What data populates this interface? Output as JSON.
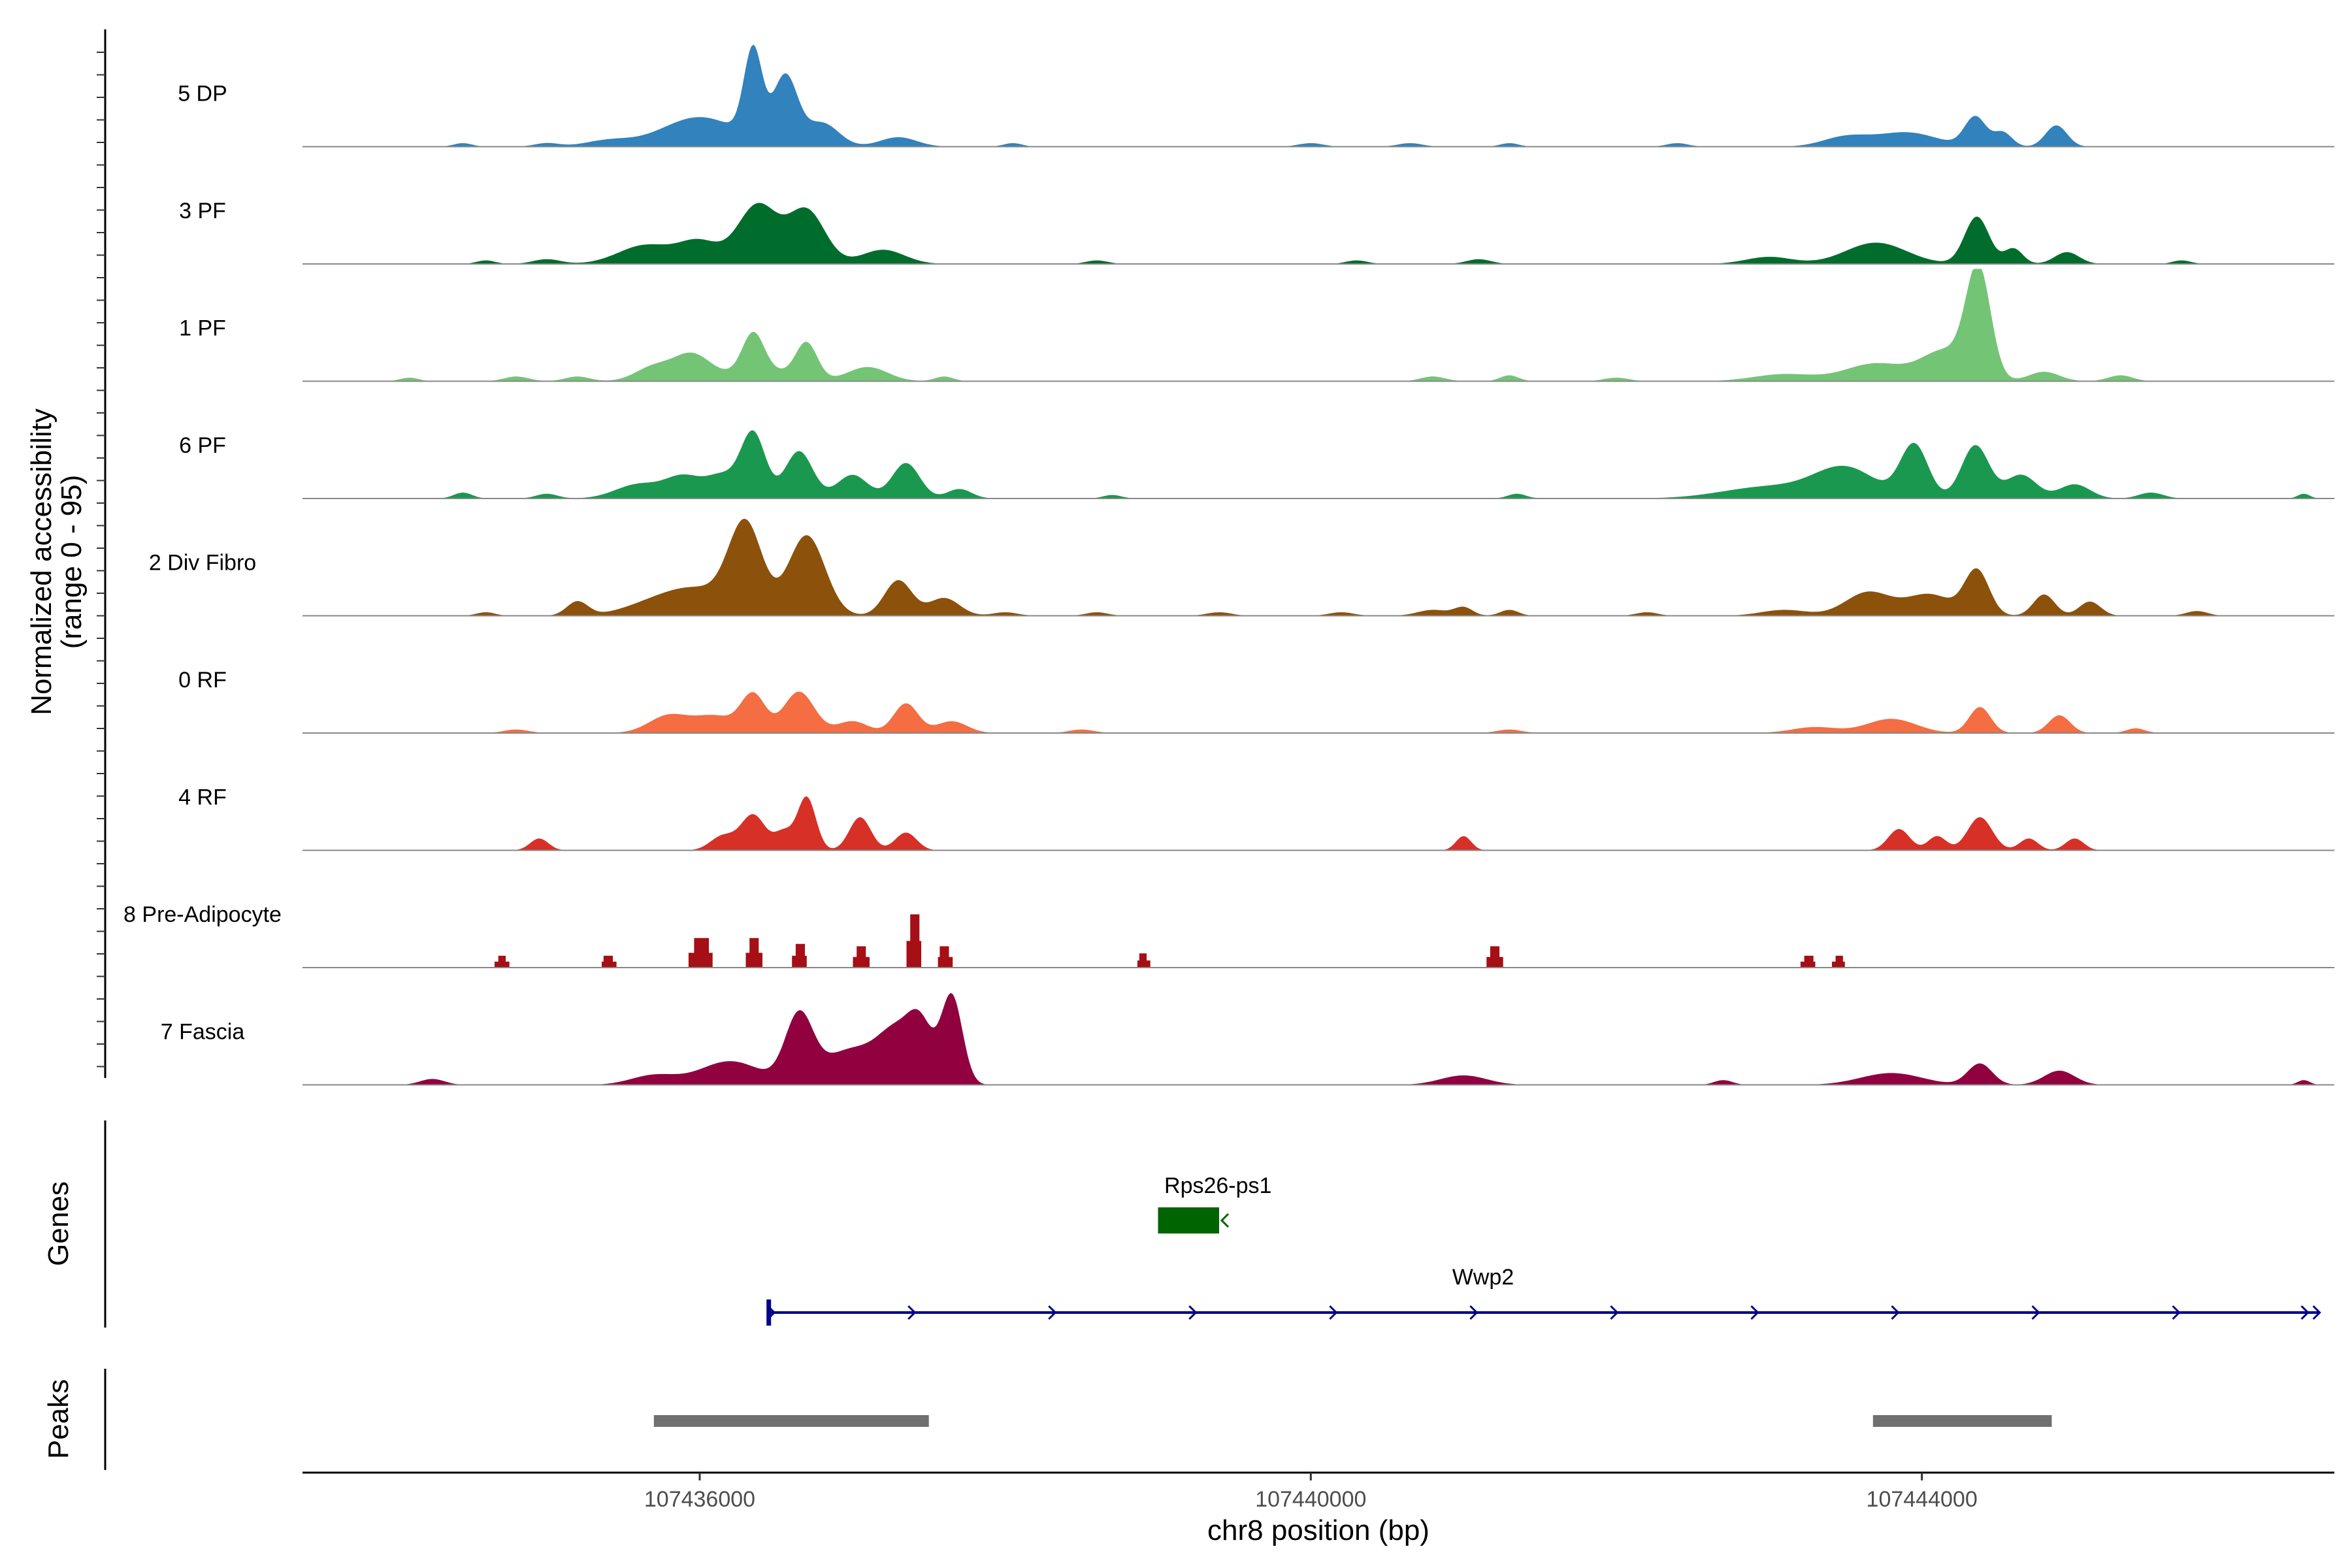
{
  "chart_data": {
    "type": "area",
    "title": "",
    "ylabel_line1": "Normalized accessibility",
    "ylabel_line2": "(range 0 - 95)",
    "y_range": [
      0,
      95
    ],
    "xlabel": "chr8 position (bp)",
    "x_range": [
      107433400,
      107446700
    ],
    "x_ticks": [
      107436000,
      107440000,
      107444000
    ],
    "x_tick_labels": [
      "107436000",
      "107440000",
      "107444000"
    ],
    "tracks": [
      {
        "name": "5 DP",
        "color": "#3182bd",
        "style": "smooth",
        "peaks": [
          [
            107434450,
            3,
            60
          ],
          [
            107435000,
            3,
            80
          ],
          [
            107435400,
            5,
            150
          ],
          [
            107436000,
            25,
            250
          ],
          [
            107436350,
            75,
            60
          ],
          [
            107436560,
            58,
            80
          ],
          [
            107436800,
            20,
            110
          ],
          [
            107437300,
            8,
            120
          ],
          [
            107438050,
            3,
            60
          ],
          [
            107440000,
            3,
            80
          ],
          [
            107440650,
            3,
            80
          ],
          [
            107441300,
            3,
            60
          ],
          [
            107442400,
            3,
            70
          ],
          [
            107443500,
            8,
            150
          ],
          [
            107443900,
            12,
            200
          ],
          [
            107444350,
            25,
            70
          ],
          [
            107444530,
            12,
            60
          ],
          [
            107444880,
            18,
            70
          ]
        ]
      },
      {
        "name": "3 PF",
        "color": "#006d2c",
        "style": "smooth",
        "peaks": [
          [
            107434600,
            3,
            60
          ],
          [
            107435000,
            4,
            90
          ],
          [
            107435650,
            16,
            180
          ],
          [
            107436000,
            18,
            130
          ],
          [
            107436380,
            50,
            130
          ],
          [
            107436700,
            45,
            120
          ],
          [
            107437200,
            12,
            140
          ],
          [
            107438600,
            3,
            70
          ],
          [
            107440300,
            3,
            70
          ],
          [
            107441100,
            4,
            80
          ],
          [
            107443000,
            6,
            150
          ],
          [
            107443700,
            18,
            200
          ],
          [
            107444360,
            40,
            80
          ],
          [
            107444600,
            13,
            60
          ],
          [
            107444950,
            10,
            80
          ],
          [
            107445700,
            3,
            60
          ]
        ]
      },
      {
        "name": "1 PF",
        "color": "#74c476",
        "style": "smooth",
        "peaks": [
          [
            107434100,
            3,
            60
          ],
          [
            107434800,
            4,
            80
          ],
          [
            107435200,
            4,
            80
          ],
          [
            107435700,
            12,
            120
          ],
          [
            107435950,
            22,
            120
          ],
          [
            107436350,
            32,
            70
          ],
          [
            107436700,
            30,
            70
          ],
          [
            107436400,
            10,
            200
          ],
          [
            107437100,
            12,
            130
          ],
          [
            107437600,
            4,
            60
          ],
          [
            107440800,
            4,
            80
          ],
          [
            107441300,
            5,
            60
          ],
          [
            107442000,
            3,
            80
          ],
          [
            107443100,
            6,
            200
          ],
          [
            107443700,
            15,
            200
          ],
          [
            107444370,
            92,
            80
          ],
          [
            107444150,
            25,
            150
          ],
          [
            107444800,
            8,
            100
          ],
          [
            107445300,
            5,
            80
          ]
        ]
      },
      {
        "name": "6 PF",
        "color": "#1a9850",
        "style": "smooth",
        "peaks": [
          [
            107434450,
            5,
            60
          ],
          [
            107435000,
            4,
            70
          ],
          [
            107435600,
            12,
            150
          ],
          [
            107435900,
            18,
            120
          ],
          [
            107436350,
            55,
            80
          ],
          [
            107436150,
            18,
            100
          ],
          [
            107436650,
            40,
            90
          ],
          [
            107437000,
            20,
            100
          ],
          [
            107437350,
            30,
            90
          ],
          [
            107437700,
            8,
            80
          ],
          [
            107438700,
            3,
            60
          ],
          [
            107441350,
            4,
            60
          ],
          [
            107443000,
            10,
            300
          ],
          [
            107443500,
            25,
            200
          ],
          [
            107443950,
            45,
            90
          ],
          [
            107444350,
            45,
            90
          ],
          [
            107444650,
            20,
            100
          ],
          [
            107445000,
            12,
            100
          ],
          [
            107445500,
            5,
            80
          ],
          [
            107446500,
            4,
            40
          ]
        ]
      },
      {
        "name": "2 Div Fibro",
        "color": "#8c510a",
        "style": "smooth",
        "peaks": [
          [
            107434600,
            3,
            60
          ],
          [
            107435200,
            12,
            70
          ],
          [
            107435700,
            10,
            200
          ],
          [
            107436000,
            20,
            200
          ],
          [
            107436300,
            75,
            110
          ],
          [
            107436700,
            68,
            120
          ],
          [
            107437300,
            30,
            90
          ],
          [
            107437600,
            15,
            100
          ],
          [
            107438000,
            3,
            80
          ],
          [
            107438600,
            3,
            70
          ],
          [
            107439400,
            3,
            80
          ],
          [
            107440200,
            3,
            80
          ],
          [
            107440800,
            5,
            100
          ],
          [
            107441000,
            7,
            60
          ],
          [
            107441300,
            5,
            60
          ],
          [
            107442200,
            3,
            70
          ],
          [
            107443100,
            5,
            150
          ],
          [
            107443650,
            20,
            150
          ],
          [
            107444050,
            18,
            150
          ],
          [
            107444360,
            38,
            80
          ],
          [
            107444800,
            18,
            70
          ],
          [
            107445100,
            12,
            70
          ],
          [
            107445800,
            4,
            70
          ]
        ]
      },
      {
        "name": "0 RF",
        "color": "#f46d43",
        "style": "smooth",
        "peaks": [
          [
            107434800,
            3,
            80
          ],
          [
            107435800,
            15,
            130
          ],
          [
            107436100,
            14,
            130
          ],
          [
            107436350,
            32,
            80
          ],
          [
            107436650,
            35,
            100
          ],
          [
            107437000,
            10,
            100
          ],
          [
            107437350,
            25,
            80
          ],
          [
            107437650,
            10,
            100
          ],
          [
            107438500,
            3,
            80
          ],
          [
            107441300,
            3,
            80
          ],
          [
            107443300,
            5,
            150
          ],
          [
            107443800,
            12,
            160
          ],
          [
            107444380,
            22,
            70
          ],
          [
            107444900,
            15,
            70
          ],
          [
            107445400,
            4,
            60
          ]
        ]
      },
      {
        "name": "4 RF",
        "color": "#d73027",
        "style": "smooth",
        "peaks": [
          [
            107434950,
            10,
            60
          ],
          [
            107436350,
            30,
            80
          ],
          [
            107436150,
            12,
            80
          ],
          [
            107436700,
            45,
            60
          ],
          [
            107436550,
            15,
            60
          ],
          [
            107437050,
            28,
            70
          ],
          [
            107437350,
            15,
            70
          ],
          [
            107441000,
            12,
            50
          ],
          [
            107443850,
            18,
            70
          ],
          [
            107444100,
            12,
            60
          ],
          [
            107444380,
            28,
            80
          ],
          [
            107444700,
            10,
            60
          ],
          [
            107445000,
            10,
            60
          ]
        ]
      },
      {
        "name": "8 Pre-Adipocyte",
        "color": "#a50f15",
        "style": "step",
        "peaks": [
          [
            107434700,
            10,
            50
          ],
          [
            107435400,
            10,
            50
          ],
          [
            107436000,
            25,
            80
          ],
          [
            107436350,
            25,
            60
          ],
          [
            107436650,
            20,
            50
          ],
          [
            107437050,
            18,
            50
          ],
          [
            107437400,
            45,
            50
          ],
          [
            107437600,
            18,
            50
          ],
          [
            107438900,
            12,
            40
          ],
          [
            107441200,
            18,
            50
          ],
          [
            107443250,
            10,
            50
          ],
          [
            107443450,
            10,
            40
          ]
        ]
      },
      {
        "name": "7 Fascia",
        "color": "#91003f",
        "style": "smooth",
        "peaks": [
          [
            107434250,
            5,
            80
          ],
          [
            107435700,
            8,
            150
          ],
          [
            107436200,
            20,
            200
          ],
          [
            107436650,
            55,
            90
          ],
          [
            107437000,
            30,
            200
          ],
          [
            107437300,
            38,
            120
          ],
          [
            107437650,
            75,
            70
          ],
          [
            107437450,
            40,
            80
          ],
          [
            107441000,
            8,
            150
          ],
          [
            107442700,
            4,
            60
          ],
          [
            107443800,
            10,
            200
          ],
          [
            107444380,
            18,
            80
          ],
          [
            107444900,
            12,
            100
          ],
          [
            107446500,
            4,
            40
          ]
        ]
      }
    ],
    "genes": [
      {
        "name": "Rps26-ps1",
        "strand": "-",
        "start": 107439000,
        "end": 107439400,
        "color": "#006400"
      },
      {
        "name": "Wwp2",
        "strand": "+",
        "start": 107436450,
        "end": 107446600,
        "color": "#00008b"
      }
    ],
    "peaks_regions": [
      [
        107435700,
        107437500
      ],
      [
        107443680,
        107444850
      ]
    ],
    "panel_labels": {
      "genes": "Genes",
      "peaks": "Peaks"
    }
  }
}
